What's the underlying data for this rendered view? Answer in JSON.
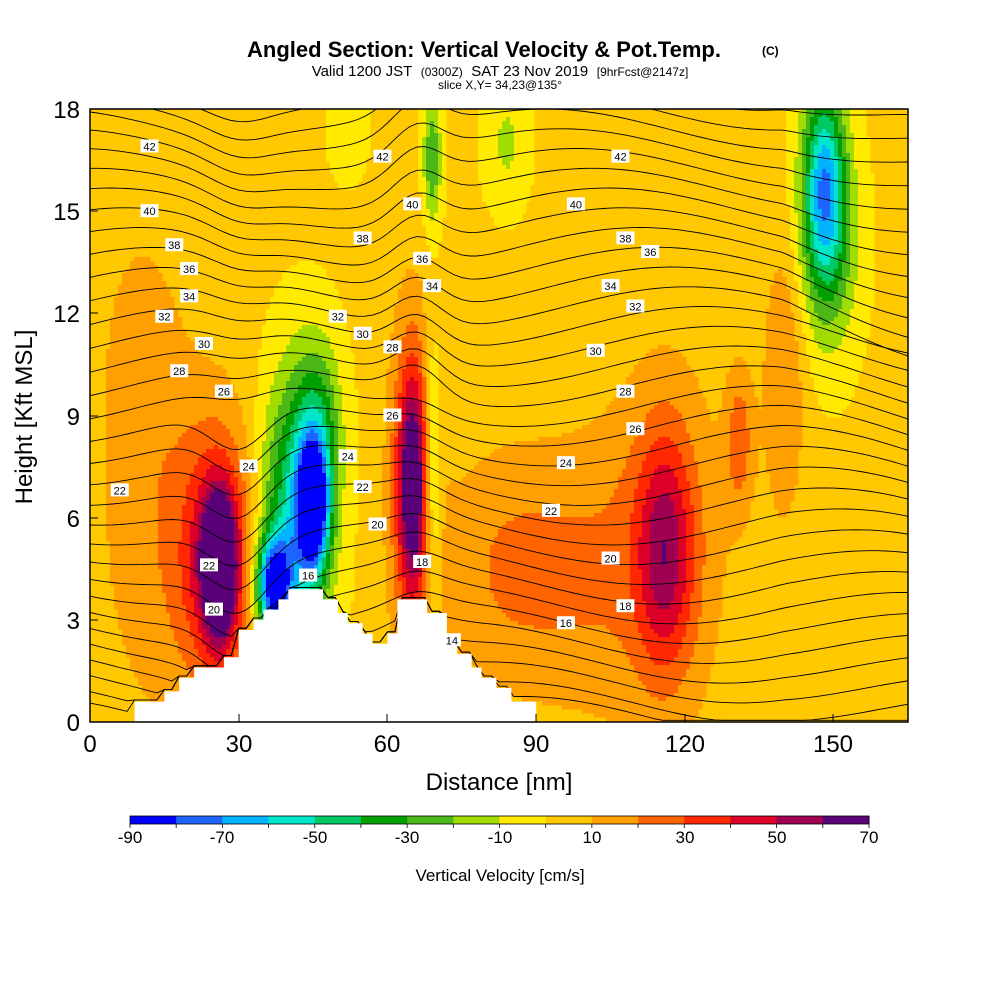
{
  "chart_data": {
    "type": "heatmap",
    "title": "Angled Section: Vertical Velocity & Pot.Temp.",
    "title_unit": "(C)",
    "subtitle": {
      "valid": "Valid 1200 JST",
      "utc": "(0300Z)",
      "date": "SAT 23 Nov 2019",
      "forecast": "[9hrFcst@2147z]"
    },
    "slice": "slice X,Y= 34,23@135°",
    "xlabel": "Distance [nm]",
    "ylabel": "Height [Kft MSL]",
    "xlim": [
      0,
      165
    ],
    "ylim": [
      0,
      18
    ],
    "x_ticks": [
      "0",
      "30",
      "60",
      "90",
      "120",
      "150"
    ],
    "y_ticks": [
      "0",
      "3",
      "6",
      "9",
      "12",
      "15",
      "18"
    ],
    "colorbar": {
      "label": "Vertical Velocity [cm/s]",
      "ticks": [
        "-90",
        "-70",
        "-50",
        "-30",
        "-10",
        "10",
        "30",
        "50",
        "70"
      ],
      "levels": [
        -90,
        -80,
        -70,
        -60,
        -50,
        -40,
        -30,
        -20,
        -10,
        0,
        10,
        20,
        30,
        40,
        50,
        60,
        70
      ],
      "colors": [
        "#0000ff",
        "#1e64ff",
        "#00b4ff",
        "#00e6c8",
        "#00c864",
        "#00a000",
        "#4cb818",
        "#a0dc00",
        "#ffea00",
        "#ffc800",
        "#ffa000",
        "#ff6400",
        "#ff2800",
        "#dc0028",
        "#a00050",
        "#5a0078"
      ]
    },
    "vertical_velocity_features": [
      {
        "x": 26,
        "y": 4.5,
        "value": 70,
        "sx": 2.0,
        "sy": 1.3
      },
      {
        "x": 26,
        "y": 4.8,
        "value": 45,
        "sx": 4.5,
        "sy": 2.2
      },
      {
        "x": 20,
        "y": 5.0,
        "value": 18,
        "sx": 12,
        "sy": 4.0
      },
      {
        "x": 45,
        "y": 6.3,
        "value": -85,
        "sx": 2.2,
        "sy": 1.3
      },
      {
        "x": 41,
        "y": 5.8,
        "value": -55,
        "sx": 5.0,
        "sy": 3.0
      },
      {
        "x": 37,
        "y": 4.0,
        "value": -80,
        "sx": 2.5,
        "sy": 1.0
      },
      {
        "x": 46,
        "y": 8.6,
        "value": -30,
        "sx": 3.2,
        "sy": 1.8
      },
      {
        "x": 65,
        "y": 7.0,
        "value": 55,
        "sx": 2.0,
        "sy": 2.2
      },
      {
        "x": 65,
        "y": 7.0,
        "value": 25,
        "sx": 3.6,
        "sy": 4.0
      },
      {
        "x": 69,
        "y": 7.0,
        "value": -28,
        "sx": 1.3,
        "sy": 3.0
      },
      {
        "x": 69,
        "y": 16.5,
        "value": -32,
        "sx": 1.3,
        "sy": 1.3
      },
      {
        "x": 84,
        "y": 4.5,
        "value": 18,
        "sx": 10,
        "sy": 2.6
      },
      {
        "x": 100,
        "y": 4.3,
        "value": 12,
        "sx": 9,
        "sy": 3.0
      },
      {
        "x": 116,
        "y": 5.0,
        "value": 38,
        "sx": 4.0,
        "sy": 2.4
      },
      {
        "x": 116,
        "y": 5.2,
        "value": 18,
        "sx": 9,
        "sy": 4.0
      },
      {
        "x": 148,
        "y": 16.0,
        "value": -55,
        "sx": 3.0,
        "sy": 2.0
      },
      {
        "x": 149,
        "y": 14.0,
        "value": -30,
        "sx": 4.0,
        "sy": 2.2
      },
      {
        "x": 84,
        "y": 17.0,
        "value": -14,
        "sx": 3.0,
        "sy": 1.3
      },
      {
        "x": 52,
        "y": 17.5,
        "value": -12,
        "sx": 2.5,
        "sy": 1.0
      },
      {
        "x": 140,
        "y": 10.0,
        "value": 18,
        "sx": 3.0,
        "sy": 3.0
      },
      {
        "x": 131,
        "y": 8.3,
        "value": 22,
        "sx": 2.0,
        "sy": 1.5
      },
      {
        "x": 10,
        "y": 11.0,
        "value": 10,
        "sx": 6,
        "sy": 3.0
      }
    ],
    "terrain_kft": [
      [
        0,
        0
      ],
      [
        9,
        0
      ],
      [
        9,
        0.6
      ],
      [
        15,
        0.6
      ],
      [
        15,
        0.9
      ],
      [
        18,
        0.9
      ],
      [
        18,
        1.3
      ],
      [
        21,
        1.3
      ],
      [
        21,
        1.6
      ],
      [
        27,
        1.6
      ],
      [
        27,
        1.9
      ],
      [
        30,
        1.9
      ],
      [
        30,
        2.7
      ],
      [
        33,
        2.7
      ],
      [
        33,
        3.0
      ],
      [
        35,
        3.0
      ],
      [
        35,
        3.3
      ],
      [
        38,
        3.3
      ],
      [
        38,
        3.6
      ],
      [
        40,
        3.6
      ],
      [
        40,
        3.9
      ],
      [
        47,
        3.9
      ],
      [
        47,
        3.6
      ],
      [
        50,
        3.6
      ],
      [
        50,
        3.2
      ],
      [
        52,
        3.2
      ],
      [
        52,
        2.9
      ],
      [
        55,
        2.9
      ],
      [
        55,
        2.6
      ],
      [
        57,
        2.6
      ],
      [
        57,
        2.3
      ],
      [
        60,
        2.3
      ],
      [
        60,
        2.6
      ],
      [
        62,
        2.6
      ],
      [
        62,
        3.6
      ],
      [
        68,
        3.6
      ],
      [
        68,
        3.2
      ],
      [
        72,
        3.2
      ],
      [
        72,
        2.3
      ],
      [
        74,
        2.3
      ],
      [
        74,
        2.0
      ],
      [
        77,
        2.0
      ],
      [
        77,
        1.6
      ],
      [
        79,
        1.6
      ],
      [
        79,
        1.3
      ],
      [
        82,
        1.3
      ],
      [
        82,
        1.0
      ],
      [
        85,
        1.0
      ],
      [
        85,
        0.6
      ],
      [
        90,
        0.6
      ],
      [
        90,
        0
      ],
      [
        165,
        0
      ]
    ],
    "potential_temperature_contour_labels": [
      {
        "value": 42,
        "x": 12,
        "y": 16.9
      },
      {
        "value": 42,
        "x": 59,
        "y": 16.6
      },
      {
        "value": 42,
        "x": 107,
        "y": 16.6
      },
      {
        "value": 40,
        "x": 12,
        "y": 15.0
      },
      {
        "value": 40,
        "x": 65,
        "y": 15.2
      },
      {
        "value": 40,
        "x": 98,
        "y": 15.2
      },
      {
        "value": 38,
        "x": 17,
        "y": 14.0
      },
      {
        "value": 38,
        "x": 55,
        "y": 14.2
      },
      {
        "value": 38,
        "x": 108,
        "y": 14.2
      },
      {
        "value": 36,
        "x": 20,
        "y": 13.3
      },
      {
        "value": 36,
        "x": 67,
        "y": 13.6
      },
      {
        "value": 36,
        "x": 113,
        "y": 13.8
      },
      {
        "value": 34,
        "x": 20,
        "y": 12.5
      },
      {
        "value": 34,
        "x": 69,
        "y": 12.8
      },
      {
        "value": 34,
        "x": 105,
        "y": 12.8
      },
      {
        "value": 32,
        "x": 15,
        "y": 11.9
      },
      {
        "value": 32,
        "x": 50,
        "y": 11.9
      },
      {
        "value": 32,
        "x": 110,
        "y": 12.2
      },
      {
        "value": 30,
        "x": 23,
        "y": 11.1
      },
      {
        "value": 30,
        "x": 55,
        "y": 11.4
      },
      {
        "value": 30,
        "x": 102,
        "y": 10.9
      },
      {
        "value": 28,
        "x": 18,
        "y": 10.3
      },
      {
        "value": 28,
        "x": 61,
        "y": 11.0
      },
      {
        "value": 28,
        "x": 108,
        "y": 9.7
      },
      {
        "value": 26,
        "x": 27,
        "y": 9.7
      },
      {
        "value": 26,
        "x": 61,
        "y": 9.0
      },
      {
        "value": 26,
        "x": 110,
        "y": 8.6
      },
      {
        "value": 24,
        "x": 32,
        "y": 7.5
      },
      {
        "value": 24,
        "x": 52,
        "y": 7.8
      },
      {
        "value": 24,
        "x": 96,
        "y": 7.6
      },
      {
        "value": 22,
        "x": 6,
        "y": 6.8
      },
      {
        "value": 22,
        "x": 55,
        "y": 6.9
      },
      {
        "value": 22,
        "x": 93,
        "y": 6.2
      },
      {
        "value": 22,
        "x": 24,
        "y": 4.6
      },
      {
        "value": 20,
        "x": 25,
        "y": 3.3
      },
      {
        "value": 20,
        "x": 58,
        "y": 5.8
      },
      {
        "value": 20,
        "x": 105,
        "y": 4.8
      },
      {
        "value": 18,
        "x": 67,
        "y": 4.7
      },
      {
        "value": 18,
        "x": 108,
        "y": 3.4
      },
      {
        "value": 16,
        "x": 44,
        "y": 4.3
      },
      {
        "value": 16,
        "x": 96,
        "y": 2.9
      },
      {
        "value": 14,
        "x": 73,
        "y": 2.4
      }
    ]
  }
}
